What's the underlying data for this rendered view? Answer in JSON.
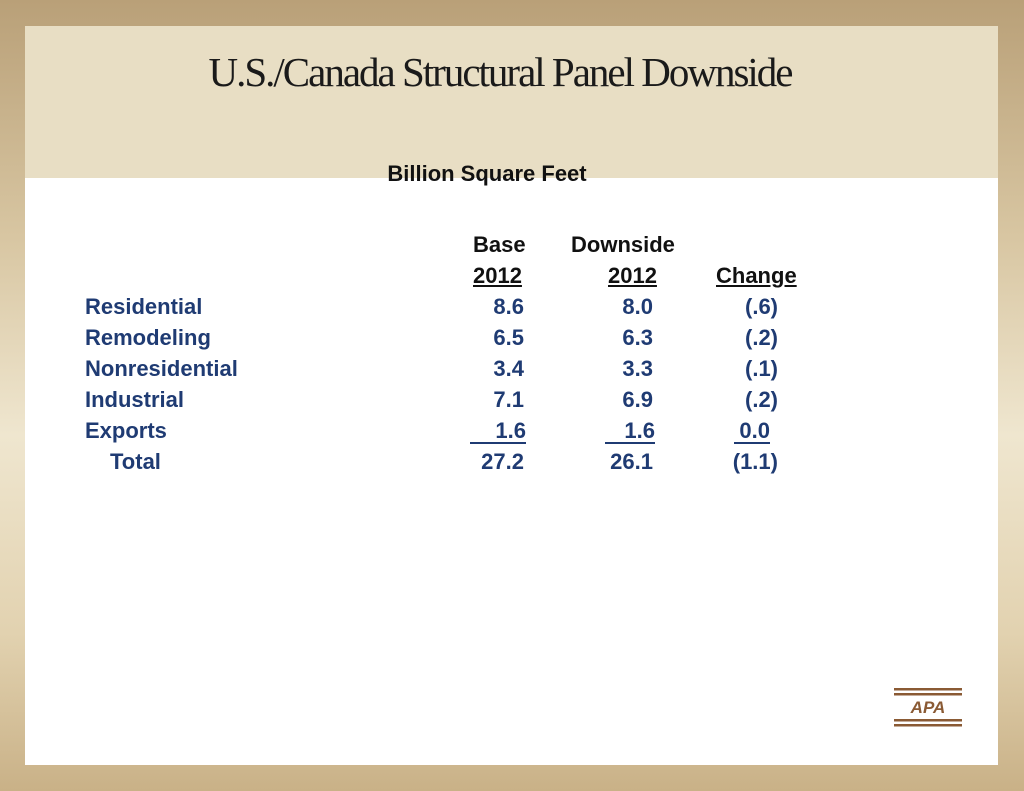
{
  "slide": {
    "title": "U.S./Canada Structural Panel Downside",
    "subtitle": "Billion Square Feet"
  },
  "table": {
    "headers": {
      "base_top": "Base",
      "base_bottom": "2012",
      "downside_top": "Downside",
      "downside_bottom": "2012",
      "change": "Change"
    },
    "rows": [
      {
        "label": "Residential",
        "base": "8.6",
        "downside": "8.0",
        "change": "(.6)"
      },
      {
        "label": "Remodeling",
        "base": "6.5",
        "downside": "6.3",
        "change": "(.2)"
      },
      {
        "label": "Nonresidential",
        "base": "3.4",
        "downside": "3.3",
        "change": "(.1)"
      },
      {
        "label": "Industrial",
        "base": "7.1",
        "downside": "6.9",
        "change": "(.2)"
      },
      {
        "label": "Exports",
        "base": "1.6",
        "downside": "1.6",
        "change": "0.0"
      },
      {
        "label": "Total",
        "base": "27.2",
        "downside": "26.1",
        "change": "(1.1)"
      }
    ]
  },
  "logo": {
    "text": "APA",
    "color": "#8a5a34"
  },
  "colors": {
    "row_text": "#1f3b73",
    "title_band": "#e8dec4"
  }
}
